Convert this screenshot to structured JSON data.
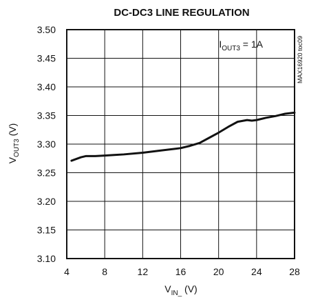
{
  "chart_data": {
    "type": "line",
    "title": "DC-DC3 LINE REGULATION",
    "xlabel": {
      "main": "V",
      "sub": "IN_",
      "suffix": " (V)"
    },
    "ylabel": {
      "main": "V",
      "sub": "OUT3",
      "suffix": " (V)"
    },
    "annotation": {
      "main": "I",
      "sub": "OUT3",
      "suffix": " = 1A"
    },
    "side_code": "MAX16920 toc09",
    "xlim": [
      4,
      28
    ],
    "ylim": [
      3.1,
      3.5
    ],
    "x_tick_labels": [
      "4",
      "8",
      "12",
      "16",
      "20",
      "24",
      "28"
    ],
    "y_tick_labels": [
      "3.10",
      "3.15",
      "3.20",
      "3.25",
      "3.30",
      "3.35",
      "3.40",
      "3.45",
      "3.50"
    ],
    "grid": true,
    "series": [
      {
        "x": [
          4.5,
          5.0,
          5.5,
          6.0,
          7.0,
          8.0,
          9.0,
          10.0,
          12.0,
          14.0,
          16.0,
          17.0,
          18.0,
          19.0,
          20.0,
          21.0,
          22.0,
          23.0,
          23.5,
          24.0,
          25.0,
          26.0,
          27.0,
          28.0
        ],
        "y": [
          3.271,
          3.274,
          3.277,
          3.279,
          3.279,
          3.28,
          3.281,
          3.282,
          3.285,
          3.289,
          3.293,
          3.297,
          3.302,
          3.311,
          3.32,
          3.33,
          3.339,
          3.342,
          3.341,
          3.342,
          3.346,
          3.349,
          3.353,
          3.355
        ]
      }
    ]
  }
}
